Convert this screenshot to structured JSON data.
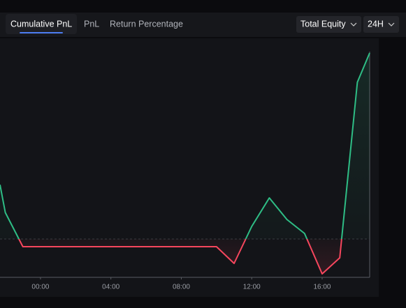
{
  "tabs": [
    "Cumulative PnL",
    "PnL",
    "Return Percentage"
  ],
  "controls": {
    "metric": "Total Equity",
    "range": "24H"
  },
  "chart_data": {
    "type": "line",
    "x": [
      -2.3,
      -2,
      -1,
      0,
      1,
      2,
      3,
      4,
      5,
      6,
      7,
      8,
      9,
      10,
      11,
      12,
      13,
      14,
      15,
      16,
      17,
      18,
      18.7
    ],
    "values": [
      7.8,
      3.8,
      -1.1,
      -1.1,
      -1.1,
      -1.1,
      -1.1,
      -1.1,
      -1.1,
      -1.1,
      -1.1,
      -1.1,
      -1.1,
      -1.1,
      -3.5,
      1.8,
      5.9,
      2.8,
      0.8,
      -5,
      -2.7,
      22.5,
      26.7
    ],
    "colors": {
      "positive": "#2ebd85",
      "negative": "#f6465d"
    },
    "xlim": [
      -2.3,
      18.7
    ],
    "xticks": [
      {
        "value": 0,
        "label": "00:00"
      },
      {
        "value": 4,
        "label": "04:00"
      },
      {
        "value": 8,
        "label": "08:00"
      },
      {
        "value": 12,
        "label": "12:00"
      },
      {
        "value": 16,
        "label": "16:00"
      }
    ],
    "ylim": [
      -5.5,
      28.8
    ]
  }
}
